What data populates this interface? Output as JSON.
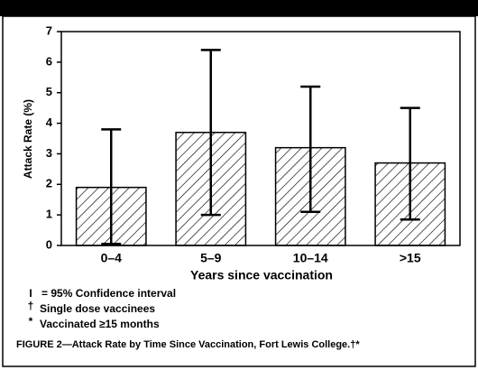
{
  "chart_data": {
    "type": "bar",
    "title": "FIGURE 2—Attack Rate by Time Since Vaccination, Fort Lewis College.†*",
    "ylabel": "Attack Rate (%)",
    "xlabel": "Years since vaccination",
    "categories": [
      "0–4",
      "5–9",
      "10–14",
      ">15"
    ],
    "values": [
      1.9,
      3.7,
      3.2,
      2.7
    ],
    "ci_low": [
      0.05,
      1.0,
      1.1,
      0.85
    ],
    "ci_high": [
      3.8,
      6.4,
      5.2,
      4.5
    ],
    "ylim": [
      0,
      7
    ],
    "yticks": [
      0,
      1,
      2,
      3,
      4,
      5,
      6,
      7
    ],
    "color": "#000000",
    "hatch": "diagonal",
    "notes": [
      {
        "symbol": "I",
        "text": "= 95% Confidence interval"
      },
      {
        "symbol": "†",
        "text": "Single dose vaccinees"
      },
      {
        "symbol": "*",
        "text": "Vaccinated ≥15 months"
      }
    ]
  }
}
